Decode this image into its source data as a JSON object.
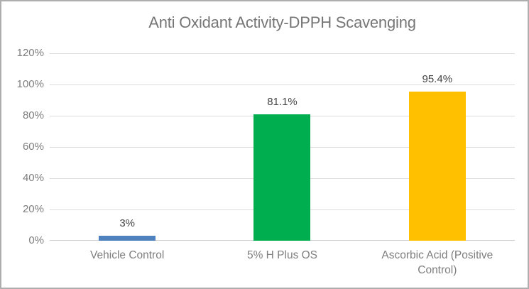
{
  "chart_data": {
    "type": "bar",
    "title": "Anti Oxidant Activity-DPPH Scavenging",
    "categories": [
      "Vehicle Control",
      "5% H Plus OS",
      "Ascorbic Acid (Positive Control)"
    ],
    "values": [
      3,
      81.1,
      95.4
    ],
    "value_labels": [
      "3%",
      "81.1%",
      "95.4%"
    ],
    "bar_colors": [
      "#4e81bd",
      "#00ae50",
      "#ffc000"
    ],
    "y_ticks": [
      {
        "label": "120%",
        "value": 120
      },
      {
        "label": "100%",
        "value": 100
      },
      {
        "label": "80%",
        "value": 80
      },
      {
        "label": "60%",
        "value": 60
      },
      {
        "label": "40%",
        "value": 40
      },
      {
        "label": "20%",
        "value": 20
      },
      {
        "label": "0%",
        "value": 0
      }
    ],
    "ylim": [
      0,
      120
    ],
    "xlabel": "",
    "ylabel": "",
    "grid": true,
    "legend": false
  },
  "colors": {
    "title_text": "#767676",
    "tick_text": "#7e7e7e",
    "value_label_text": "#454545",
    "gridline": "#dcdcdc",
    "axis_line": "#d0d0d0",
    "frame_border": "#aeaeae",
    "background": "#ffffff"
  }
}
